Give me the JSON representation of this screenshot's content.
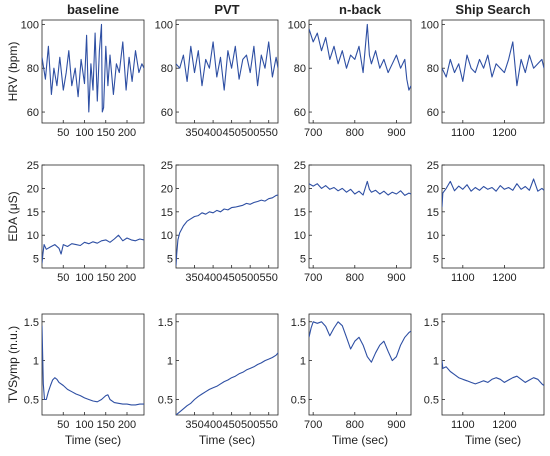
{
  "figure": {
    "series_color": "#2e4fa3",
    "axes_color": "#262626",
    "background": "#ffffff",
    "columns": [
      "baseline",
      "PVT",
      "n-back",
      "Ship Search"
    ],
    "row_labels": [
      "HRV (bpm)",
      "EDA (μS)",
      "TVSymp (n.u.)"
    ],
    "x_label": "Time (sec)"
  },
  "chart_data": [
    {
      "type": "line",
      "row": 0,
      "col": 0,
      "title": "baseline",
      "ylabel": "HRV (bpm)",
      "xlabel": "",
      "xlim": [
        0,
        240
      ],
      "ylim": [
        55,
        102
      ],
      "xticks": [
        50,
        100,
        150,
        200
      ],
      "yticks": [
        60,
        80,
        100
      ],
      "x": [
        0,
        8,
        15,
        22,
        28,
        35,
        42,
        50,
        57,
        63,
        70,
        78,
        85,
        92,
        100,
        105,
        110,
        115,
        120,
        125,
        130,
        135,
        140,
        142,
        145,
        150,
        155,
        160,
        168,
        175,
        182,
        190,
        198,
        205,
        212,
        220,
        228,
        235,
        240
      ],
      "y": [
        85,
        75,
        90,
        68,
        80,
        72,
        85,
        70,
        78,
        88,
        72,
        80,
        67,
        84,
        73,
        95,
        60,
        82,
        70,
        96,
        65,
        88,
        100,
        60,
        62,
        90,
        72,
        86,
        68,
        82,
        78,
        92,
        70,
        85,
        74,
        88,
        78,
        82,
        80
      ]
    },
    {
      "type": "line",
      "row": 0,
      "col": 1,
      "title": "PVT",
      "xlabel": "",
      "xlim": [
        300,
        575
      ],
      "ylim": [
        55,
        102
      ],
      "xticks": [
        350,
        400,
        450,
        500,
        550
      ],
      "yticks": [
        60,
        80,
        100
      ],
      "x": [
        300,
        310,
        320,
        330,
        340,
        350,
        360,
        370,
        380,
        390,
        400,
        410,
        420,
        430,
        440,
        450,
        460,
        470,
        480,
        490,
        500,
        510,
        520,
        530,
        540,
        550,
        560,
        570,
        575
      ],
      "y": [
        82,
        80,
        86,
        74,
        90,
        78,
        88,
        72,
        84,
        80,
        92,
        76,
        85,
        70,
        88,
        80,
        90,
        75,
        84,
        86,
        78,
        90,
        72,
        86,
        80,
        92,
        76,
        85,
        80
      ]
    },
    {
      "type": "line",
      "row": 0,
      "col": 2,
      "title": "n-back",
      "xlabel": "",
      "xlim": [
        690,
        935
      ],
      "ylim": [
        55,
        102
      ],
      "xticks": [
        700,
        800,
        900
      ],
      "yticks": [
        60,
        80,
        100
      ],
      "x": [
        690,
        700,
        710,
        720,
        730,
        740,
        750,
        760,
        770,
        780,
        790,
        800,
        810,
        820,
        830,
        835,
        840,
        850,
        860,
        870,
        880,
        890,
        900,
        910,
        920,
        925,
        930,
        935
      ],
      "y": [
        98,
        92,
        96,
        88,
        94,
        84,
        90,
        82,
        88,
        80,
        86,
        84,
        90,
        78,
        100,
        86,
        82,
        88,
        80,
        84,
        78,
        82,
        86,
        80,
        84,
        75,
        70,
        72
      ]
    },
    {
      "type": "line",
      "row": 0,
      "col": 3,
      "title": "Ship Search",
      "xlabel": "",
      "xlim": [
        1050,
        1295
      ],
      "ylim": [
        55,
        102
      ],
      "xticks": [
        1100,
        1200
      ],
      "yticks": [
        60,
        80,
        100
      ],
      "x": [
        1050,
        1060,
        1070,
        1080,
        1090,
        1100,
        1110,
        1120,
        1130,
        1140,
        1150,
        1160,
        1170,
        1180,
        1190,
        1200,
        1210,
        1220,
        1230,
        1240,
        1250,
        1260,
        1270,
        1280,
        1290,
        1295
      ],
      "y": [
        80,
        76,
        84,
        78,
        82,
        74,
        86,
        80,
        78,
        84,
        80,
        86,
        76,
        82,
        80,
        78,
        84,
        92,
        72,
        84,
        78,
        86,
        80,
        82,
        84,
        80
      ]
    },
    {
      "type": "line",
      "row": 1,
      "col": 0,
      "title": "",
      "ylabel": "EDA (μS)",
      "xlabel": "",
      "xlim": [
        0,
        240
      ],
      "ylim": [
        3,
        25
      ],
      "xticks": [
        50,
        100,
        150,
        200
      ],
      "yticks": [
        5,
        10,
        15,
        20,
        25
      ],
      "x": [
        0,
        2,
        5,
        10,
        20,
        30,
        40,
        45,
        50,
        60,
        70,
        80,
        90,
        100,
        110,
        120,
        130,
        140,
        150,
        160,
        170,
        180,
        190,
        200,
        210,
        220,
        230,
        240
      ],
      "y": [
        4,
        6,
        8,
        7,
        7.5,
        8,
        7.2,
        6,
        8,
        7.6,
        8.2,
        8,
        7.8,
        8.5,
        8.2,
        8.6,
        8.3,
        8.8,
        9,
        8.5,
        9.2,
        10,
        8.8,
        9.4,
        9,
        8.8,
        9.2,
        9
      ]
    },
    {
      "type": "line",
      "row": 1,
      "col": 1,
      "title": "",
      "xlabel": "",
      "xlim": [
        300,
        575
      ],
      "ylim": [
        3,
        25
      ],
      "xticks": [
        350,
        400,
        450,
        500,
        550
      ],
      "yticks": [
        5,
        10,
        15,
        20,
        25
      ],
      "x": [
        300,
        302,
        305,
        310,
        320,
        330,
        340,
        350,
        360,
        370,
        380,
        390,
        400,
        410,
        420,
        430,
        440,
        450,
        460,
        470,
        480,
        490,
        500,
        510,
        520,
        530,
        540,
        550,
        560,
        570,
        575
      ],
      "y": [
        3.5,
        6,
        9,
        10.5,
        12,
        13,
        13.5,
        14,
        14.2,
        14.8,
        14.5,
        15,
        14.8,
        15.3,
        15,
        15.6,
        15.4,
        15.9,
        16,
        16.2,
        16.4,
        16.8,
        16.6,
        17,
        17.2,
        17.5,
        17.3,
        17.8,
        18,
        18.5,
        18.6
      ]
    },
    {
      "type": "line",
      "row": 1,
      "col": 2,
      "title": "",
      "xlabel": "",
      "xlim": [
        690,
        935
      ],
      "ylim": [
        3,
        25
      ],
      "xticks": [
        700,
        800,
        900
      ],
      "yticks": [
        5,
        10,
        15,
        20,
        25
      ],
      "x": [
        690,
        700,
        710,
        720,
        730,
        740,
        750,
        760,
        770,
        780,
        790,
        800,
        810,
        820,
        830,
        835,
        840,
        850,
        860,
        870,
        880,
        890,
        900,
        910,
        920,
        930,
        935
      ],
      "y": [
        21,
        20.5,
        21,
        20,
        20.6,
        19.8,
        20.2,
        19.5,
        20,
        19.2,
        19.8,
        18.8,
        19.4,
        18.6,
        21.5,
        19.8,
        19.2,
        19.6,
        18.8,
        19.4,
        18.6,
        19.2,
        18.8,
        19.5,
        18.5,
        19,
        18.8
      ]
    },
    {
      "type": "line",
      "row": 1,
      "col": 3,
      "title": "",
      "xlabel": "",
      "xlim": [
        1050,
        1295
      ],
      "ylim": [
        3,
        25
      ],
      "xticks": [
        1100,
        1200
      ],
      "yticks": [
        5,
        10,
        15,
        20,
        25
      ],
      "x": [
        1050,
        1052,
        1060,
        1070,
        1080,
        1090,
        1100,
        1110,
        1120,
        1130,
        1140,
        1150,
        1160,
        1170,
        1180,
        1190,
        1200,
        1210,
        1220,
        1230,
        1240,
        1250,
        1260,
        1270,
        1280,
        1290,
        1295
      ],
      "y": [
        16,
        19,
        20,
        21.5,
        19.5,
        20.5,
        19.8,
        20.8,
        19.4,
        20.2,
        19.6,
        20.4,
        19.8,
        20.2,
        19.4,
        20.6,
        19.8,
        20.2,
        19.6,
        21,
        19.8,
        20.4,
        19.6,
        22,
        19.4,
        20,
        19.6
      ]
    },
    {
      "type": "line",
      "row": 2,
      "col": 0,
      "title": "",
      "ylabel": "TVSymp (n.u.)",
      "xlabel": "Time (sec)",
      "xlim": [
        0,
        240
      ],
      "ylim": [
        0.3,
        1.6
      ],
      "xticks": [
        50,
        100,
        150,
        200
      ],
      "yticks": [
        0.5,
        1,
        1.5
      ],
      "x": [
        0,
        3,
        6,
        10,
        15,
        20,
        25,
        30,
        35,
        40,
        50,
        60,
        70,
        80,
        90,
        100,
        110,
        120,
        130,
        140,
        150,
        155,
        160,
        170,
        180,
        190,
        200,
        210,
        220,
        230,
        240
      ],
      "y": [
        1.45,
        0.7,
        0.5,
        0.5,
        0.6,
        0.68,
        0.75,
        0.78,
        0.76,
        0.72,
        0.68,
        0.63,
        0.6,
        0.57,
        0.55,
        0.52,
        0.5,
        0.48,
        0.47,
        0.5,
        0.55,
        0.56,
        0.5,
        0.46,
        0.45,
        0.44,
        0.44,
        0.43,
        0.43,
        0.44,
        0.44
      ]
    },
    {
      "type": "line",
      "row": 2,
      "col": 1,
      "title": "",
      "xlabel": "Time (sec)",
      "xlim": [
        300,
        575
      ],
      "ylim": [
        0.3,
        1.6
      ],
      "xticks": [
        350,
        400,
        450,
        500,
        550
      ],
      "yticks": [
        0.5,
        1,
        1.5
      ],
      "x": [
        300,
        310,
        320,
        330,
        340,
        350,
        360,
        370,
        380,
        390,
        400,
        410,
        420,
        430,
        440,
        450,
        460,
        470,
        480,
        490,
        500,
        510,
        520,
        530,
        540,
        550,
        560,
        570,
        575
      ],
      "y": [
        0.3,
        0.34,
        0.38,
        0.42,
        0.45,
        0.5,
        0.54,
        0.57,
        0.6,
        0.63,
        0.65,
        0.67,
        0.7,
        0.73,
        0.75,
        0.78,
        0.8,
        0.83,
        0.85,
        0.88,
        0.9,
        0.92,
        0.95,
        0.97,
        1,
        1.02,
        1.04,
        1.07,
        1.1
      ]
    },
    {
      "type": "line",
      "row": 2,
      "col": 2,
      "title": "",
      "xlabel": "Time (sec)",
      "xlim": [
        690,
        935
      ],
      "ylim": [
        0.3,
        1.6
      ],
      "xticks": [
        700,
        800,
        900
      ],
      "yticks": [
        0.5,
        1,
        1.5
      ],
      "x": [
        690,
        695,
        700,
        710,
        720,
        730,
        740,
        750,
        760,
        770,
        780,
        790,
        800,
        810,
        820,
        830,
        840,
        850,
        860,
        870,
        880,
        890,
        900,
        910,
        920,
        930,
        935
      ],
      "y": [
        1.3,
        1.42,
        1.5,
        1.48,
        1.5,
        1.44,
        1.32,
        1.42,
        1.5,
        1.45,
        1.3,
        1.15,
        1.25,
        1.3,
        1.2,
        1.05,
        0.98,
        1.1,
        1.2,
        1.25,
        1.12,
        1.0,
        1.05,
        1.2,
        1.3,
        1.36,
        1.38
      ]
    },
    {
      "type": "line",
      "row": 2,
      "col": 3,
      "title": "",
      "xlabel": "Time (sec)",
      "xlim": [
        1050,
        1295
      ],
      "ylim": [
        0.3,
        1.6
      ],
      "xticks": [
        1100,
        1200
      ],
      "yticks": [
        0.5,
        1,
        1.5
      ],
      "x": [
        1050,
        1052,
        1060,
        1070,
        1080,
        1090,
        1100,
        1110,
        1120,
        1130,
        1140,
        1150,
        1160,
        1170,
        1180,
        1190,
        1200,
        1210,
        1220,
        1230,
        1240,
        1250,
        1260,
        1270,
        1280,
        1290,
        1295
      ],
      "y": [
        1.0,
        0.9,
        0.92,
        0.86,
        0.82,
        0.78,
        0.76,
        0.74,
        0.72,
        0.7,
        0.72,
        0.74,
        0.72,
        0.76,
        0.78,
        0.76,
        0.72,
        0.75,
        0.78,
        0.8,
        0.76,
        0.72,
        0.75,
        0.78,
        0.76,
        0.7,
        0.68
      ]
    }
  ]
}
